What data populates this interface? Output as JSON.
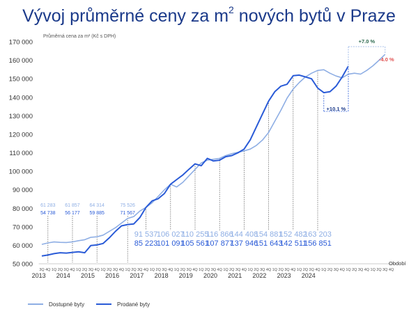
{
  "title": {
    "main": "Vývoj průměrné ceny za m",
    "sup": "2",
    "rest": " nových bytů v Praze"
  },
  "chart_data": {
    "type": "line",
    "ylabel": "Průměrná cena za m² (Kč s DPH)",
    "xlabel": "Období",
    "ylim": [
      50000,
      170000
    ],
    "yticks": [
      50000,
      60000,
      70000,
      80000,
      90000,
      100000,
      110000,
      120000,
      130000,
      140000,
      150000,
      160000,
      170000
    ],
    "ytick_labels": [
      "50 000",
      "60 000",
      "70 000",
      "80 000",
      "90 000",
      "100 000",
      "110 000",
      "120 000",
      "130 000",
      "140 000",
      "150 000",
      "160 000",
      "170 000"
    ],
    "quarters": [
      "3Q",
      "4Q",
      "1Q",
      "2Q",
      "3Q",
      "4Q",
      "1Q",
      "2Q",
      "3Q",
      "4Q",
      "1Q",
      "2Q",
      "3Q",
      "4Q",
      "1Q",
      "2Q",
      "3Q",
      "4Q",
      "1Q",
      "2Q",
      "3Q",
      "4Q",
      "1Q",
      "2Q",
      "3Q",
      "4Q",
      "1Q",
      "2Q",
      "3Q",
      "4Q",
      "1Q",
      "2Q",
      "3Q",
      "4Q",
      "1Q",
      "2Q",
      "3Q",
      "4Q",
      "1Q",
      "2Q",
      "3Q",
      "4Q",
      "1Q",
      "2Q",
      "3Q",
      "4Q",
      "1Q",
      "2Q",
      "3Q",
      "4Q",
      "1Q",
      "2Q",
      "3Q",
      "4Q",
      "1Q",
      "2Q",
      "3Q",
      "4Q"
    ],
    "years": [
      {
        "label": "2013",
        "q": -0.5
      },
      {
        "label": "2014",
        "q": 3.5
      },
      {
        "label": "2015",
        "q": 7.5
      },
      {
        "label": "2016",
        "q": 11.5
      },
      {
        "label": "2017",
        "q": 15.5
      },
      {
        "label": "2018",
        "q": 19.5
      },
      {
        "label": "2019",
        "q": 23.5
      },
      {
        "label": "2020",
        "q": 27.5
      },
      {
        "label": "2021",
        "q": 31.5
      },
      {
        "label": "2022",
        "q": 35.5
      },
      {
        "label": "2023",
        "q": 39.5
      },
      {
        "label": "2024",
        "q": 43.5
      }
    ],
    "series": [
      {
        "name": "Dostupné byty",
        "color": "#8eaee4",
        "values": [
          60500,
          61283,
          61800,
          61600,
          61500,
          61857,
          62500,
          63000,
          64314,
          64600,
          65500,
          67500,
          69500,
          72000,
          74500,
          75526,
          78500,
          80500,
          83000,
          86500,
          90000,
          93000,
          91537,
          94000,
          97500,
          101000,
          104500,
          106027,
          106500,
          107000,
          108500,
          109500,
          110255,
          111000,
          112000,
          114000,
          116866,
          121000,
          127000,
          133000,
          139500,
          144408,
          148000,
          151000,
          153000,
          154500,
          154881,
          153000,
          151500,
          150500,
          152482,
          153000,
          152500,
          154500,
          157000,
          160000,
          163203
        ],
        "labels": [
          {
            "q": 1,
            "text": "61 283"
          },
          {
            "q": 5,
            "text": "61 857"
          },
          {
            "q": 9,
            "text": "64 314"
          },
          {
            "q": 14,
            "text": "75 526"
          },
          {
            "q": 17,
            "text": "91 537"
          },
          {
            "q": 21,
            "text": "106 027"
          },
          {
            "q": 25,
            "text": "110 255"
          },
          {
            "q": 29,
            "text": "116 866"
          },
          {
            "q": 33,
            "text": "144 408"
          },
          {
            "q": 37,
            "text": "154 881"
          },
          {
            "q": 41,
            "text": "152 482"
          },
          {
            "q": 45,
            "text": "163 203"
          }
        ]
      },
      {
        "name": "Prodané byty",
        "color": "#2a5bd7",
        "values": [
          54200,
          54738,
          55500,
          56000,
          55800,
          56177,
          56500,
          56000,
          59885,
          60200,
          61000,
          64000,
          67500,
          70500,
          71200,
          71567,
          75000,
          80500,
          84000,
          85223,
          88000,
          93000,
          95500,
          98000,
          101091,
          104000,
          103000,
          107000,
          105561,
          106000,
          107877,
          108500,
          110000,
          112000,
          117000,
          124000,
          131000,
          137946,
          143000,
          146000,
          147000,
          151643,
          152000,
          151000,
          150000,
          145000,
          142511,
          143000,
          146000,
          151000,
          156851
        ],
        "labels": [
          {
            "q": 1,
            "text": "54 738"
          },
          {
            "q": 5,
            "text": "56 177"
          },
          {
            "q": 9,
            "text": "59 885"
          },
          {
            "q": 14,
            "text": "71 567"
          },
          {
            "q": 17,
            "text": "85 223"
          },
          {
            "q": 21,
            "text": "101 091"
          },
          {
            "q": 25,
            "text": "105 561"
          },
          {
            "q": 29,
            "text": "107 877"
          },
          {
            "q": 33,
            "text": "137 946"
          },
          {
            "q": 37,
            "text": "151 643"
          },
          {
            "q": 41,
            "text": "142 511"
          },
          {
            "q": 45,
            "text": "156 851"
          }
        ]
      }
    ],
    "annotations": [
      {
        "text": "+7.0 %",
        "color": "#2e6b4f"
      },
      {
        "text": "-4.0 %",
        "color": "#e05050"
      },
      {
        "text": "+10.1 %",
        "color": "#1b3a8a"
      }
    ],
    "grid": false,
    "legend": "bottom-left"
  }
}
